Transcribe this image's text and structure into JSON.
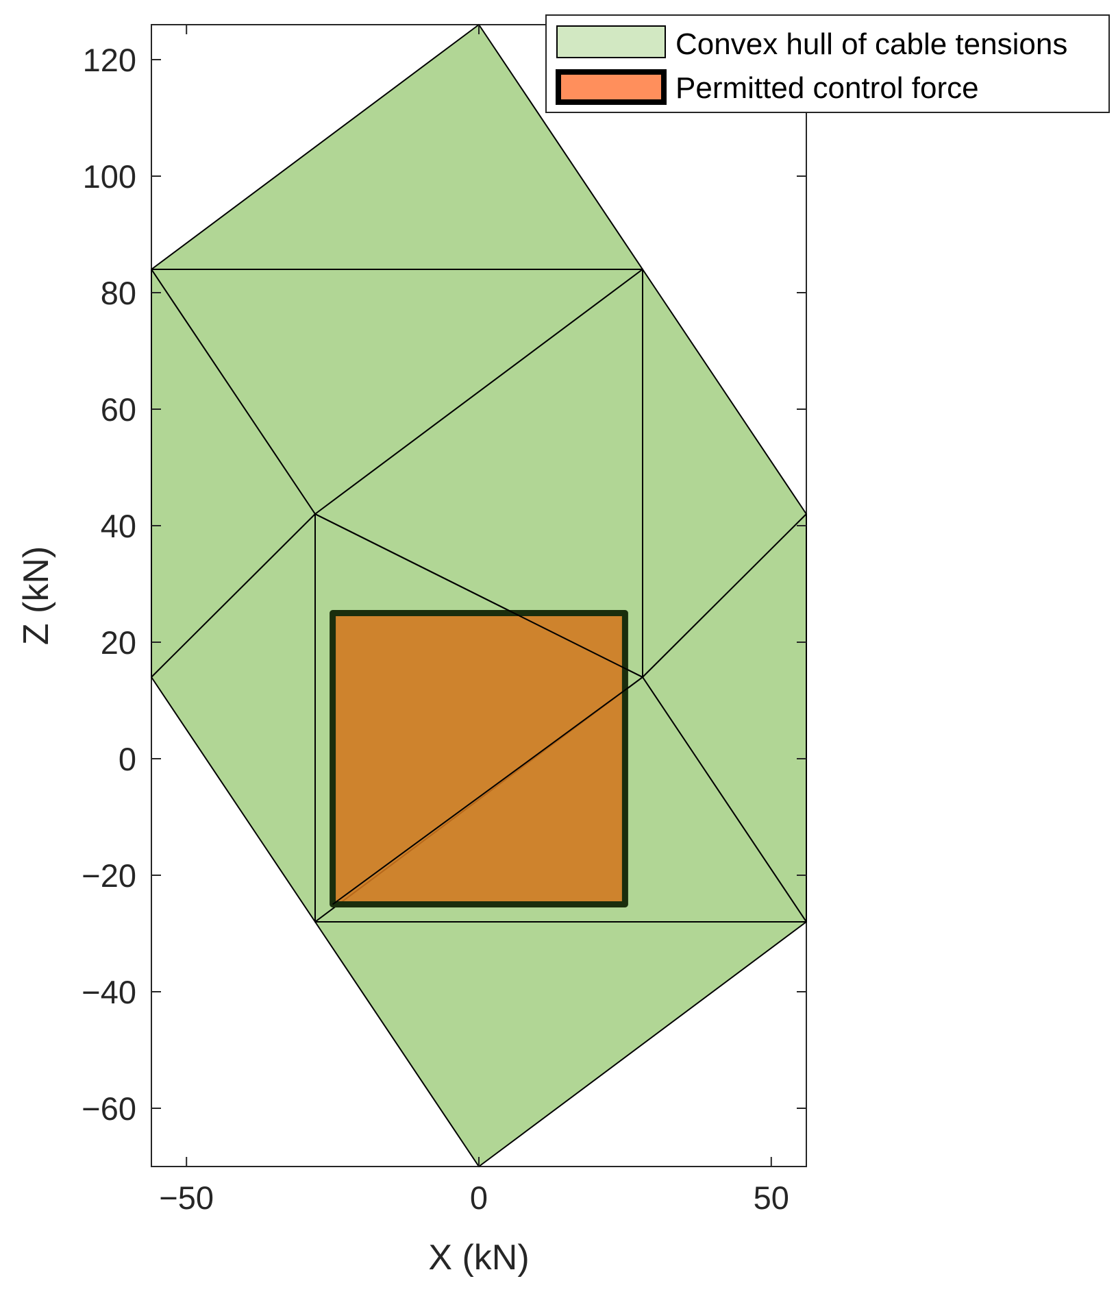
{
  "chart_data": {
    "type": "area",
    "xlabel": "X (kN)",
    "ylabel": "Z (kN)",
    "xlim": [
      -56,
      56
    ],
    "ylim": [
      -70,
      126
    ],
    "xticks": [
      -50,
      0,
      50
    ],
    "yticks": [
      -60,
      -40,
      -20,
      0,
      20,
      40,
      60,
      80,
      100,
      120
    ],
    "xtick_labels": [
      "−50",
      "0",
      "50"
    ],
    "ytick_labels": [
      "−60",
      "−40",
      "−20",
      "0",
      "20",
      "40",
      "60",
      "80",
      "100",
      "120"
    ],
    "grid": false,
    "legend_position": "top-right",
    "colors": {
      "hull_fill": "#b1d695",
      "hull_legend_fill": "#d2e8c2",
      "force_fill": "#d1771f",
      "force_legend_fill": "#ff8f5c",
      "force_edge": "#1a2e0d",
      "edge": "#000000",
      "axis": "#262626"
    },
    "series": [
      {
        "name": "Convex hull of cable tensions",
        "vertices": [
          [
            0,
            126
          ],
          [
            28,
            84
          ],
          [
            56,
            42
          ],
          [
            56,
            -28
          ],
          [
            0,
            -70
          ],
          [
            -28,
            -28
          ],
          [
            -56,
            14
          ],
          [
            -56,
            84
          ]
        ],
        "triangles": [
          [
            [
              -56,
              84
            ],
            [
              0,
              126
            ],
            [
              28,
              84
            ]
          ],
          [
            [
              -56,
              84
            ],
            [
              28,
              84
            ],
            [
              -28,
              42
            ]
          ],
          [
            [
              -56,
              84
            ],
            [
              -28,
              42
            ],
            [
              -56,
              14
            ]
          ],
          [
            [
              -28,
              42
            ],
            [
              28,
              84
            ],
            [
              28,
              14
            ]
          ],
          [
            [
              28,
              84
            ],
            [
              56,
              42
            ],
            [
              28,
              14
            ]
          ],
          [
            [
              -28,
              42
            ],
            [
              28,
              14
            ],
            [
              -28,
              -28
            ]
          ],
          [
            [
              -28,
              42
            ],
            [
              -28,
              -28
            ],
            [
              -56,
              14
            ]
          ],
          [
            [
              28,
              14
            ],
            [
              56,
              42
            ],
            [
              56,
              -28
            ]
          ],
          [
            [
              -28,
              -28
            ],
            [
              28,
              14
            ],
            [
              56,
              -28
            ]
          ],
          [
            [
              -28,
              -28
            ],
            [
              56,
              -28
            ],
            [
              0,
              -70
            ]
          ]
        ]
      },
      {
        "name": "Permitted control force",
        "vertices": [
          [
            -25,
            -25
          ],
          [
            25,
            -25
          ],
          [
            25,
            25
          ],
          [
            -25,
            25
          ]
        ]
      }
    ]
  }
}
